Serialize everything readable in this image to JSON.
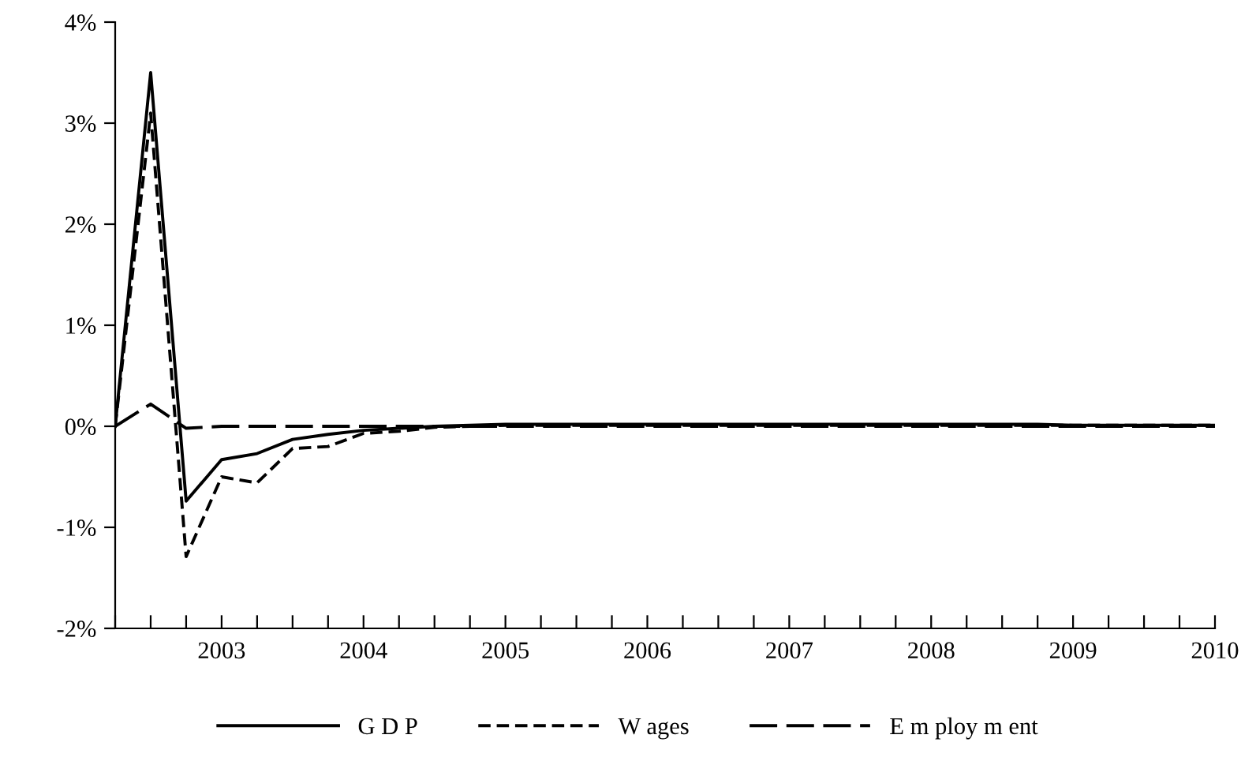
{
  "chart_data": {
    "type": "line",
    "x": [
      2002.75,
      2003.0,
      2003.25,
      2003.5,
      2003.75,
      2004.0,
      2004.25,
      2004.5,
      2004.75,
      2005.0,
      2005.25,
      2005.5,
      2005.75,
      2006.0,
      2006.25,
      2006.5,
      2006.75,
      2007.0,
      2007.25,
      2007.5,
      2007.75,
      2008.0,
      2008.25,
      2008.5,
      2008.75,
      2009.0,
      2009.25,
      2009.5,
      2009.75,
      2010.0,
      2010.25,
      2010.5
    ],
    "series": [
      {
        "name": "G D P",
        "color": "#000000",
        "line_style": "solid",
        "values": [
          0,
          3.5,
          -0.74,
          -0.33,
          -0.27,
          -0.13,
          -0.08,
          -0.04,
          -0.02,
          0,
          0.01,
          0.02,
          0.02,
          0.02,
          0.02,
          0.02,
          0.02,
          0.02,
          0.02,
          0.02,
          0.02,
          0.02,
          0.02,
          0.02,
          0.02,
          0.02,
          0.02,
          0.01,
          0.01,
          0.01,
          0.01,
          0.01
        ]
      },
      {
        "name": "W ages",
        "color": "#000000",
        "line_style": "dashed",
        "values": [
          0,
          3.1,
          -1.29,
          -0.5,
          -0.56,
          -0.22,
          -0.2,
          -0.07,
          -0.05,
          -0.01,
          0,
          0.01,
          0.01,
          0.01,
          0.01,
          0.01,
          0.01,
          0.01,
          0.01,
          0.01,
          0.01,
          0.01,
          0.01,
          0.01,
          0.01,
          0.01,
          0.01,
          0.01,
          0.01,
          0.01,
          0.01,
          0.01
        ]
      },
      {
        "name": "E m ploy m ent",
        "color": "#000000",
        "line_style": "longdash",
        "values": [
          0,
          0.22,
          -0.02,
          0,
          0,
          0,
          0,
          0,
          0,
          0,
          0,
          0,
          0,
          0,
          0,
          0,
          0,
          0,
          0,
          0,
          0,
          0,
          0,
          0,
          0,
          0,
          0,
          0,
          0,
          0,
          0,
          0
        ]
      }
    ],
    "xlim": [
      2002.75,
      2010.5
    ],
    "xticks": [
      {
        "value": 2002.75,
        "label": null
      },
      {
        "value": 2003.0,
        "label": null
      },
      {
        "value": 2003.25,
        "label": null
      },
      {
        "value": 2003.5,
        "label": "2003"
      },
      {
        "value": 2003.75,
        "label": null
      },
      {
        "value": 2004.0,
        "label": null
      },
      {
        "value": 2004.25,
        "label": null
      },
      {
        "value": 2004.5,
        "label": "2004"
      },
      {
        "value": 2004.75,
        "label": null
      },
      {
        "value": 2005.0,
        "label": null
      },
      {
        "value": 2005.25,
        "label": null
      },
      {
        "value": 2005.5,
        "label": "2005"
      },
      {
        "value": 2005.75,
        "label": null
      },
      {
        "value": 2006.0,
        "label": null
      },
      {
        "value": 2006.25,
        "label": null
      },
      {
        "value": 2006.5,
        "label": "2006"
      },
      {
        "value": 2006.75,
        "label": null
      },
      {
        "value": 2007.0,
        "label": null
      },
      {
        "value": 2007.25,
        "label": null
      },
      {
        "value": 2007.5,
        "label": "2007"
      },
      {
        "value": 2007.75,
        "label": null
      },
      {
        "value": 2008.0,
        "label": null
      },
      {
        "value": 2008.25,
        "label": null
      },
      {
        "value": 2008.5,
        "label": "2008"
      },
      {
        "value": 2008.75,
        "label": null
      },
      {
        "value": 2009.0,
        "label": null
      },
      {
        "value": 2009.25,
        "label": null
      },
      {
        "value": 2009.5,
        "label": "2009"
      },
      {
        "value": 2009.75,
        "label": null
      },
      {
        "value": 2010.0,
        "label": null
      },
      {
        "value": 2010.25,
        "label": null
      },
      {
        "value": 2010.5,
        "label": "2010"
      }
    ],
    "ylim": [
      -2,
      4
    ],
    "yticks": [
      {
        "value": -2,
        "label": "-2%"
      },
      {
        "value": -1,
        "label": "-1%"
      },
      {
        "value": 0,
        "label": "0%"
      },
      {
        "value": 1,
        "label": "1%"
      },
      {
        "value": 2,
        "label": "2%"
      },
      {
        "value": 3,
        "label": "3%"
      },
      {
        "value": 4,
        "label": "4%"
      }
    ],
    "grid": false,
    "legend": "bottom",
    "marker": "none"
  }
}
